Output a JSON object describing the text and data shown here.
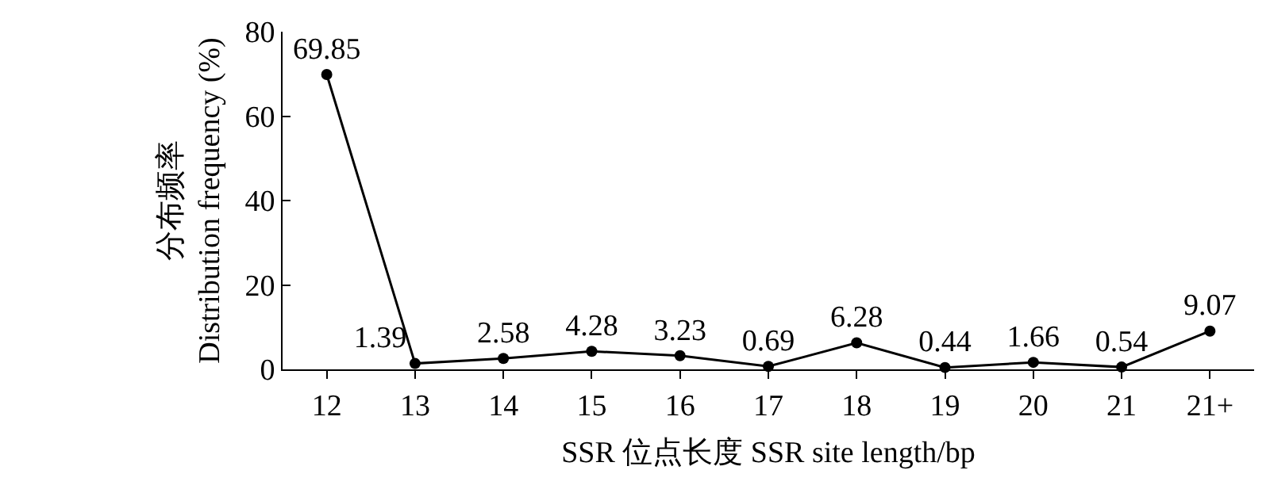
{
  "chart_data": {
    "type": "line",
    "xlabel": "SSR 位点长度 SSR site length/bp",
    "ylabel": "分布频率\nDistribution frequency (%)",
    "categories": [
      "12",
      "13",
      "14",
      "15",
      "16",
      "17",
      "18",
      "19",
      "20",
      "21",
      "21+"
    ],
    "values": [
      69.85,
      1.39,
      2.58,
      4.28,
      3.23,
      0.69,
      6.28,
      0.44,
      1.66,
      0.54,
      9.07
    ],
    "color": "#000000",
    "ylim": [
      0,
      80
    ],
    "yticks": [
      0,
      20,
      40,
      60,
      80
    ],
    "grid": false,
    "marker": "circle",
    "line_style": "solid",
    "data_labels": true
  }
}
